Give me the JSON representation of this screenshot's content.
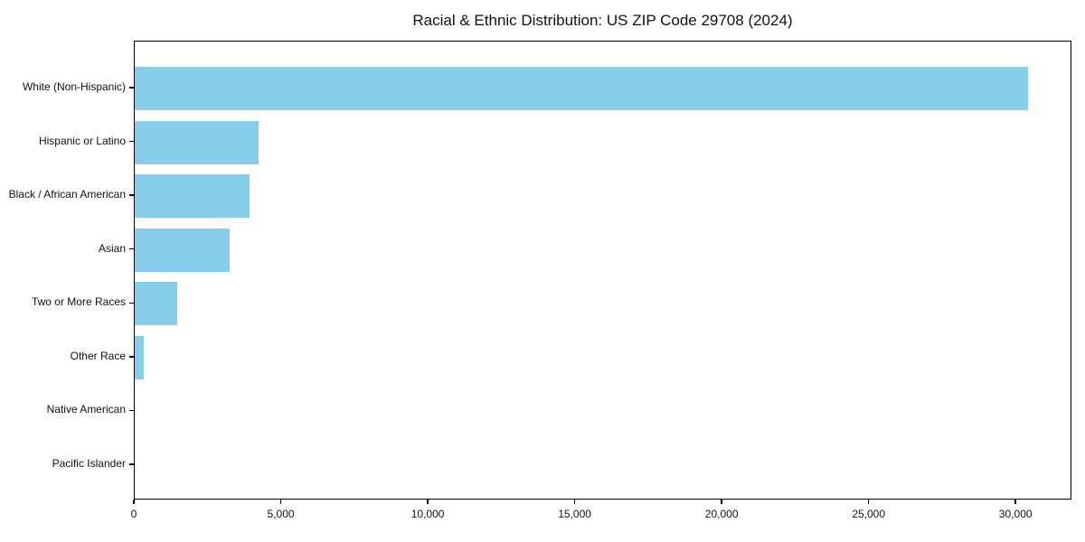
{
  "colors": {
    "bar": "#87CEEB",
    "axis": "#000000",
    "background": "#FFFFFF",
    "text": "#111111"
  },
  "chart_data": {
    "type": "bar",
    "orientation": "horizontal",
    "title": "Racial & Ethnic Distribution: US ZIP Code 29708 (2024)",
    "categories": [
      "White (Non-Hispanic)",
      "Hispanic or Latino",
      "Black / African American",
      "Asian",
      "Two or More Races",
      "Other Race",
      "Native American",
      "Pacific Islander"
    ],
    "values": [
      30400,
      4200,
      3900,
      3240,
      1440,
      300,
      0,
      0
    ],
    "xlabel": "",
    "ylabel": "",
    "xlim": [
      0,
      31900
    ],
    "xticks": [
      0,
      5000,
      10000,
      15000,
      20000,
      25000,
      30000
    ],
    "xtick_labels": [
      "0",
      "5,000",
      "10,000",
      "15,000",
      "20,000",
      "25,000",
      "30,000"
    ],
    "bar_color": "#87CEEB",
    "grid": false,
    "legend_position": "none",
    "frame": "full-box"
  }
}
